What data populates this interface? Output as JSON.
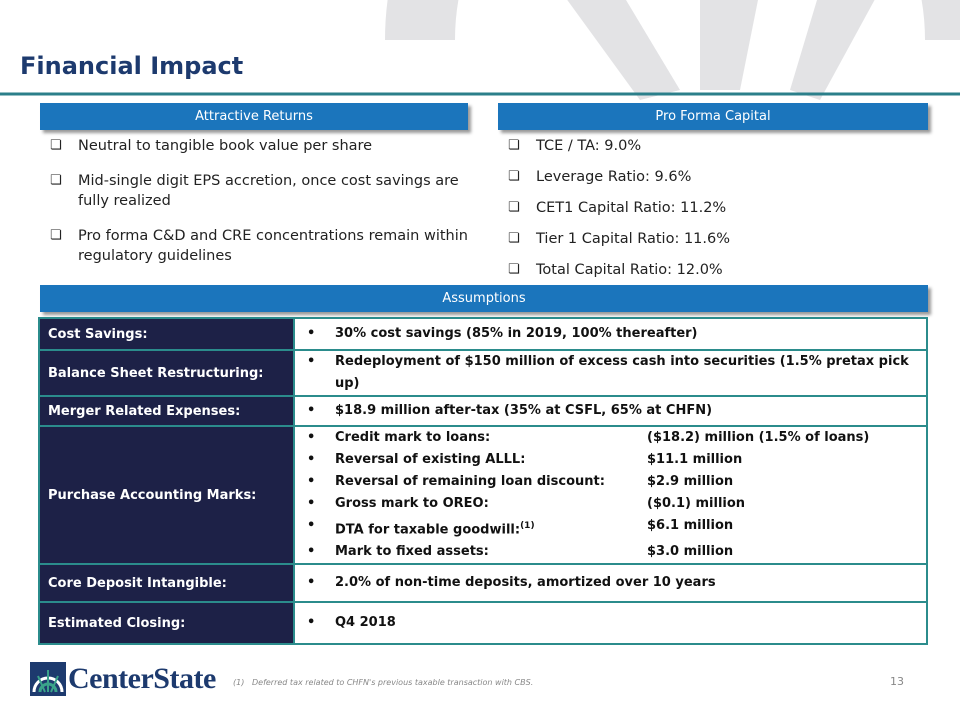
{
  "header": {
    "title": "Financial Impact"
  },
  "returns": {
    "heading": "Attractive Returns",
    "items": [
      "Neutral to tangible book value per share",
      "Mid-single digit EPS accretion, once cost savings are fully realized",
      "Pro forma C&D and CRE concentrations remain within regulatory guidelines"
    ]
  },
  "capital": {
    "heading": "Pro Forma Capital",
    "items": [
      "TCE / TA: 9.0%",
      "Leverage Ratio: 9.6%",
      "CET1 Capital Ratio: 11.2%",
      "Tier 1 Capital Ratio: 11.6%",
      "Total Capital Ratio: 12.0%"
    ]
  },
  "assumptions": {
    "heading": "Assumptions",
    "rows": [
      {
        "label": "Cost Savings:",
        "items": [
          {
            "text": "30% cost savings (85% in 2019, 100% thereafter)"
          }
        ]
      },
      {
        "label": "Balance Sheet Restructuring:",
        "items": [
          {
            "text": "Redeployment of $150 million of excess cash into securities (1.5% pretax pick up)"
          }
        ]
      },
      {
        "label": "Merger Related Expenses:",
        "items": [
          {
            "text": "$18.9 million after-tax (35% at CSFL, 65% at CHFN)"
          }
        ]
      },
      {
        "label": "Purchase Accounting Marks:",
        "items": [
          {
            "text": "Credit mark to loans:",
            "amount": "($18.2) million (1.5% of loans)"
          },
          {
            "text": "Reversal of existing ALLL:",
            "amount": "$11.1 million"
          },
          {
            "text": "Reversal of remaining loan discount:",
            "amount": "$2.9 million"
          },
          {
            "text": "Gross mark to OREO:",
            "amount": "($0.1) million"
          },
          {
            "text": "DTA for taxable goodwill:",
            "note": "(1)",
            "amount": "$6.1 million"
          },
          {
            "text": "Mark to fixed assets:",
            "amount": "$3.0 million"
          }
        ]
      },
      {
        "label": "Core Deposit Intangible:",
        "items": [
          {
            "text": "2.0% of non-time deposits, amortized over 10 years"
          }
        ]
      },
      {
        "label": "Estimated Closing:",
        "items": [
          {
            "text": "Q4 2018"
          }
        ]
      }
    ]
  },
  "footer": {
    "logo": "CenterState",
    "footnote_marker": "(1)",
    "footnote": "Deferred tax related to CHFN's previous taxable transaction with CBS.",
    "page": "13"
  }
}
